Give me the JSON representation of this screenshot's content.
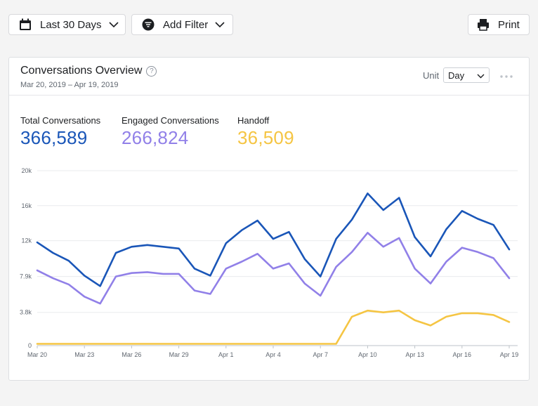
{
  "toolbar": {
    "date_range_label": "Last 30 Days",
    "add_filter_label": "Add Filter",
    "print_label": "Print"
  },
  "card": {
    "title": "Conversations Overview",
    "help_glyph": "?",
    "date_range": "Mar 20, 2019 – Apr 19, 2019",
    "unit_label": "Unit",
    "unit_value": "Day"
  },
  "metrics": {
    "total": {
      "label": "Total Conversations",
      "value": "366,589",
      "color": "#1a56b8"
    },
    "engaged": {
      "label": "Engaged Conversations",
      "value": "266,824",
      "color": "#9180e8"
    },
    "handoff": {
      "label": "Handoff",
      "value": "36,509",
      "color": "#f5c543"
    }
  },
  "icons": {
    "date_range": "calendar-icon",
    "filter": "filter-icon",
    "print": "printer-icon",
    "dropdown": "chevron-down-icon",
    "more": "more-horizontal-icon"
  },
  "chart_data": {
    "type": "line",
    "title": "",
    "xlabel": "",
    "ylabel": "",
    "ylim": [
      0,
      20000
    ],
    "y_ticks": [
      0,
      3800,
      7900,
      12000,
      16000,
      20000
    ],
    "y_tick_labels": [
      "0",
      "3.8k",
      "7.9k",
      "12k",
      "16k",
      "20k"
    ],
    "grid": true,
    "x": [
      "Mar 20",
      "Mar 21",
      "Mar 22",
      "Mar 23",
      "Mar 24",
      "Mar 25",
      "Mar 26",
      "Mar 27",
      "Mar 28",
      "Mar 29",
      "Mar 30",
      "Mar 31",
      "Apr 1",
      "Apr 2",
      "Apr 3",
      "Apr 4",
      "Apr 5",
      "Apr 6",
      "Apr 7",
      "Apr 8",
      "Apr 9",
      "Apr 10",
      "Apr 11",
      "Apr 12",
      "Apr 13",
      "Apr 14",
      "Apr 15",
      "Apr 16",
      "Apr 17",
      "Apr 18",
      "Apr 19"
    ],
    "x_tick_labels": [
      "Mar 20",
      "Mar 23",
      "Mar 26",
      "Mar 29",
      "Apr 1",
      "Apr 4",
      "Apr 7",
      "Apr 10",
      "Apr 13",
      "Apr 16",
      "Apr 19"
    ],
    "series": [
      {
        "key": "total",
        "color": "#1a56b8",
        "values": [
          11800,
          10600,
          9700,
          8000,
          6800,
          10600,
          11300,
          11500,
          11300,
          11100,
          8800,
          8000,
          11700,
          13200,
          14300,
          12200,
          13000,
          9900,
          7900,
          12200,
          14400,
          17400,
          15500,
          16900,
          12400,
          10200,
          13300,
          15400,
          14500,
          13800,
          11000
        ]
      },
      {
        "key": "engaged",
        "color": "#9180e8",
        "values": [
          8600,
          7700,
          7000,
          5600,
          4800,
          7900,
          8300,
          8400,
          8200,
          8200,
          6300,
          5900,
          8800,
          9600,
          10500,
          8800,
          9400,
          7100,
          5700,
          9000,
          10700,
          12900,
          11300,
          12300,
          8800,
          7100,
          9600,
          11200,
          10700,
          10000,
          7700
        ]
      },
      {
        "key": "handoff",
        "color": "#f5c543",
        "values": [
          200,
          200,
          200,
          200,
          200,
          200,
          200,
          200,
          200,
          200,
          200,
          200,
          200,
          200,
          200,
          200,
          200,
          200,
          200,
          200,
          3300,
          4000,
          3800,
          4000,
          2900,
          2300,
          3300,
          3700,
          3700,
          3500,
          2700
        ]
      }
    ]
  }
}
